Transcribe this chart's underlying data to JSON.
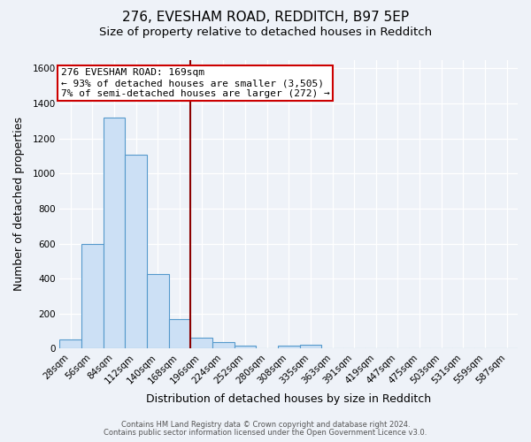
{
  "title": "276, EVESHAM ROAD, REDDITCH, B97 5EP",
  "subtitle": "Size of property relative to detached houses in Redditch",
  "xlabel": "Distribution of detached houses by size in Redditch",
  "ylabel": "Number of detached properties",
  "footnote1": "Contains HM Land Registry data © Crown copyright and database right 2024.",
  "footnote2": "Contains public sector information licensed under the Open Government Licence v3.0.",
  "bin_labels": [
    "28sqm",
    "56sqm",
    "84sqm",
    "112sqm",
    "140sqm",
    "168sqm",
    "196sqm",
    "224sqm",
    "252sqm",
    "280sqm",
    "308sqm",
    "335sqm",
    "363sqm",
    "391sqm",
    "419sqm",
    "447sqm",
    "475sqm",
    "503sqm",
    "531sqm",
    "559sqm",
    "587sqm"
  ],
  "bar_values": [
    55,
    600,
    1320,
    1110,
    425,
    170,
    65,
    40,
    15,
    0,
    15,
    20,
    0,
    0,
    0,
    0,
    0,
    0,
    0,
    0,
    0
  ],
  "bar_color": "#cce0f5",
  "bar_edge_color": "#5599cc",
  "vline_color": "#8b0000",
  "annotation_text": "276 EVESHAM ROAD: 169sqm\n← 93% of detached houses are smaller (3,505)\n7% of semi-detached houses are larger (272) →",
  "annotation_box_color": "#ffffff",
  "annotation_box_edge": "#cc0000",
  "ylim": [
    0,
    1650
  ],
  "yticks": [
    0,
    200,
    400,
    600,
    800,
    1000,
    1200,
    1400,
    1600
  ],
  "bg_color": "#eef2f8",
  "plot_bg_color": "#eef2f8",
  "grid_color": "#ffffff",
  "title_fontsize": 11,
  "subtitle_fontsize": 9.5,
  "axis_label_fontsize": 9,
  "tick_fontsize": 7.5,
  "annotation_fontsize": 8
}
